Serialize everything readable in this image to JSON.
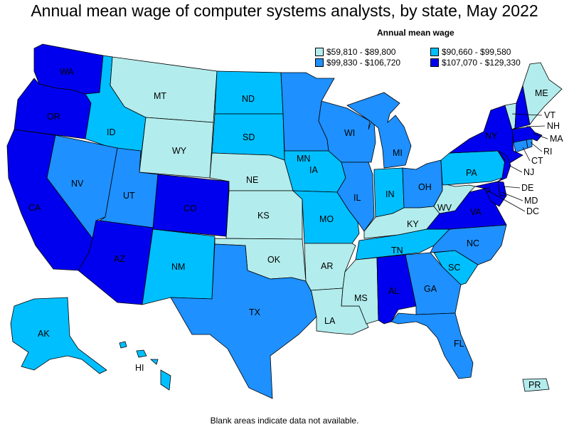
{
  "title": "Annual mean wage of computer systems analysts, by state, May 2022",
  "legend": {
    "title": "Annual mean wage",
    "items": [
      {
        "label": "$59,810 - $89,800",
        "color": "#b3ecec"
      },
      {
        "label": "$90,660 - $99,580",
        "color": "#00bfff"
      },
      {
        "label": "$99,830 - $106,720",
        "color": "#1e90ff"
      },
      {
        "label": "$107,070 - $129,330",
        "color": "#0000ee"
      }
    ]
  },
  "footnote": "Blank areas indicate data not available.",
  "states": {
    "WA": 3,
    "OR": 3,
    "CA": 3,
    "ID": 1,
    "NV": 2,
    "MT": 0,
    "WY": 0,
    "UT": 2,
    "AZ": 3,
    "CO": 3,
    "NM": 1,
    "ND": 1,
    "SD": 1,
    "NE": 0,
    "KS": 0,
    "OK": 0,
    "TX": 2,
    "MN": 2,
    "IA": 1,
    "MO": 1,
    "AR": 0,
    "LA": 0,
    "WI": 2,
    "IL": 2,
    "MI": 2,
    "IN": 1,
    "OH": 2,
    "KY": 0,
    "TN": 1,
    "MS": 0,
    "AL": 3,
    "GA": 2,
    "FL": 2,
    "SC": 1,
    "NC": 2,
    "VA": 3,
    "WV": 0,
    "PA": 1,
    "NY": 3,
    "ME": 0,
    "VT": 0,
    "NH": 3,
    "MA": 3,
    "RI": 2,
    "CT": 2,
    "NJ": 3,
    "DE": 3,
    "MD": 3,
    "DC": 3,
    "AK": 1,
    "HI": 1,
    "PR": 0
  },
  "labels": {
    "WA": "WA",
    "OR": "OR",
    "CA": "CA",
    "ID": "ID",
    "NV": "NV",
    "MT": "MT",
    "WY": "WY",
    "UT": "UT",
    "AZ": "AZ",
    "CO": "CO",
    "NM": "NM",
    "ND": "ND",
    "SD": "SD",
    "NE": "NE",
    "KS": "KS",
    "OK": "OK",
    "TX": "TX",
    "MN": "MN",
    "IA": "IA",
    "MO": "MO",
    "AR": "AR",
    "LA": "LA",
    "WI": "WI",
    "IL": "IL",
    "MI": "MI",
    "IN": "IN",
    "OH": "OH",
    "KY": "KY",
    "TN": "TN",
    "MS": "MS",
    "AL": "AL",
    "GA": "GA",
    "FL": "FL",
    "SC": "SC",
    "NC": "NC",
    "VA": "VA",
    "WV": "WV",
    "PA": "PA",
    "NY": "NY",
    "ME": "ME",
    "VT": "VT",
    "NH": "NH",
    "MA": "MA",
    "RI": "RI",
    "CT": "CT",
    "NJ": "NJ",
    "DE": "DE",
    "MD": "MD",
    "DC": "DC",
    "AK": "AK",
    "HI": "HI",
    "PR": "PR"
  }
}
